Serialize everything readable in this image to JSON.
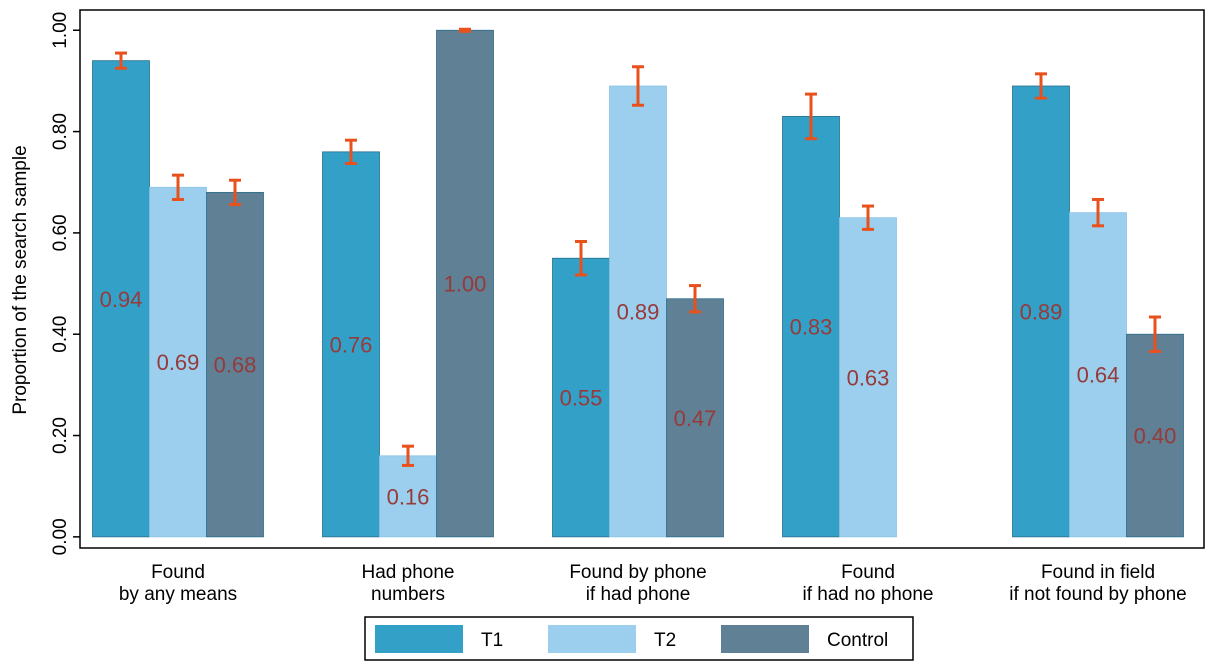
{
  "chart_data": {
    "type": "bar",
    "y_label": "Proportion of the search sample",
    "categories": [
      [
        "Found",
        "by any means"
      ],
      [
        "Had phone",
        "numbers"
      ],
      [
        "Found by phone",
        "if had phone"
      ],
      [
        "Found",
        "if had no phone"
      ],
      [
        "Found in field",
        "if not found by phone"
      ]
    ],
    "series": [
      {
        "name": "T1",
        "color": "#33a0c8",
        "values": [
          0.94,
          0.76,
          0.55,
          0.83,
          0.89
        ],
        "value_labels": [
          "0.94",
          "0.76",
          "0.55",
          "0.83",
          "0.89"
        ],
        "errors": [
          0.015,
          0.023,
          0.033,
          0.044,
          0.024
        ]
      },
      {
        "name": "T2",
        "color": "#9ccfee",
        "values": [
          0.69,
          0.16,
          0.89,
          0.63,
          0.64
        ],
        "value_labels": [
          "0.69",
          "0.16",
          "0.89",
          "0.63",
          "0.64"
        ],
        "errors": [
          0.024,
          0.019,
          0.038,
          0.023,
          0.026
        ]
      },
      {
        "name": "Control",
        "color": "#5f8095",
        "values": [
          0.68,
          1.0,
          0.47,
          null,
          0.4
        ],
        "value_labels": [
          "0.68",
          "1.00",
          "0.47",
          null,
          "0.40"
        ],
        "errors": [
          0.024,
          0.002,
          0.026,
          null,
          0.034
        ]
      }
    ],
    "error_color": "#e8501c",
    "label_color": "#963a3a",
    "ylim": [
      -0.022,
      1.04
    ],
    "yticks": [
      {
        "value": 0,
        "label": "0.00"
      },
      {
        "value": 0.2,
        "label": "0.20"
      },
      {
        "value": 0.4,
        "label": "0.40"
      },
      {
        "value": 0.6,
        "label": "0.60"
      },
      {
        "value": 0.8,
        "label": "0.80"
      },
      {
        "value": 1,
        "label": "1.00"
      }
    ],
    "legend": "bottom"
  }
}
